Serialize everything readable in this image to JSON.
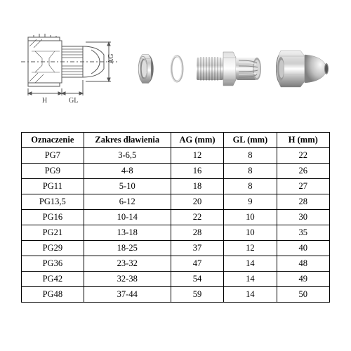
{
  "diagram_labels": {
    "H": "H",
    "GL": "GL",
    "AG": "AG"
  },
  "table": {
    "columns": [
      "Oznaczenie",
      "Zakres dławienia",
      "AG (mm)",
      "GL (mm)",
      "H (mm)"
    ],
    "rows": [
      [
        "PG7",
        "3-6,5",
        "12",
        "8",
        "22"
      ],
      [
        "PG9",
        "4-8",
        "16",
        "8",
        "26"
      ],
      [
        "PG11",
        "5-10",
        "18",
        "8",
        "27"
      ],
      [
        "PG13,5",
        "6-12",
        "20",
        "9",
        "28"
      ],
      [
        "PG16",
        "10-14",
        "22",
        "10",
        "30"
      ],
      [
        "PG21",
        "13-18",
        "28",
        "10",
        "35"
      ],
      [
        "PG29",
        "18-25",
        "37",
        "12",
        "40"
      ],
      [
        "PG36",
        "23-32",
        "47",
        "14",
        "48"
      ],
      [
        "PG42",
        "32-38",
        "54",
        "14",
        "49"
      ],
      [
        "PG48",
        "37-44",
        "59",
        "14",
        "50"
      ]
    ],
    "header_font_weight": "bold",
    "font_size_pt": 10,
    "border_color": "#000000",
    "text_align": "center"
  },
  "colors": {
    "background": "#ffffff",
    "line": "#555555",
    "metal_light": "#e8e8e8",
    "metal_mid": "#c8c8c8",
    "metal_dark": "#9a9a9a",
    "metal_shadow": "#707070"
  }
}
